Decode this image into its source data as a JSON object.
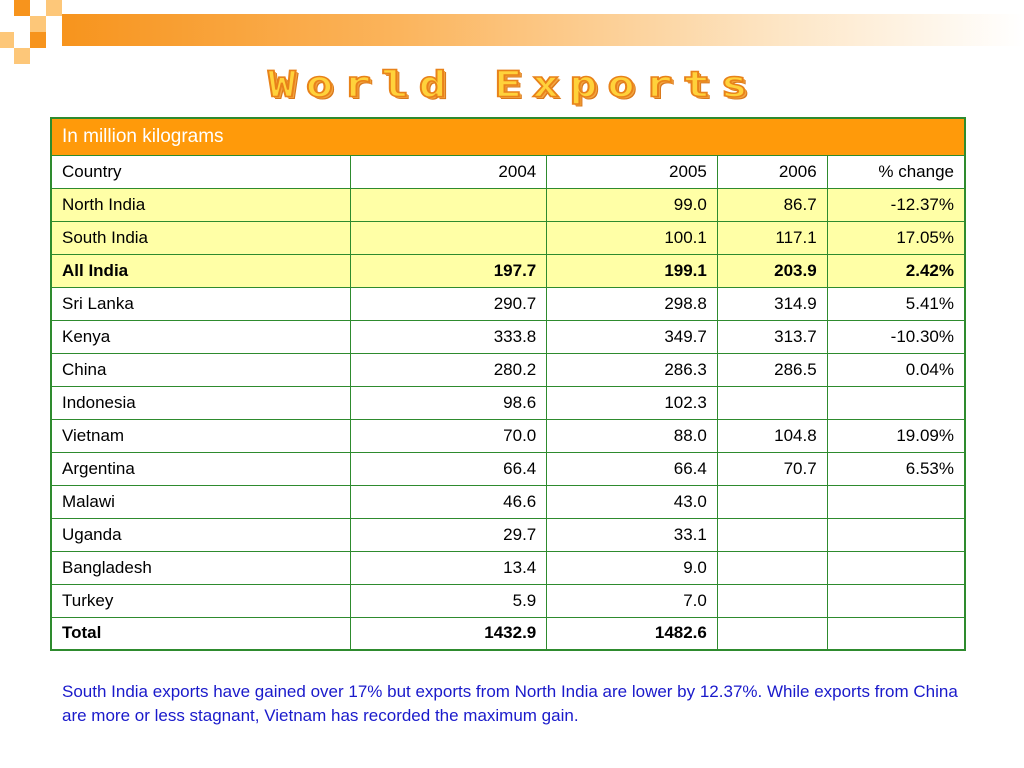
{
  "title": "World Exports",
  "table": {
    "unit": "In million kilograms",
    "headers": [
      "Country",
      "2004",
      "2005",
      "2006",
      "% change"
    ],
    "rows": [
      {
        "country": "North India",
        "y2004": "",
        "y2005": "99.0",
        "y2006": "86.7",
        "change": "-12.37%",
        "highlight": true,
        "bold": false
      },
      {
        "country": "South India",
        "y2004": "",
        "y2005": "100.1",
        "y2006": "117.1",
        "change": "17.05%",
        "highlight": true,
        "bold": false
      },
      {
        "country": "All India",
        "y2004": "197.7",
        "y2005": "199.1",
        "y2006": "203.9",
        "change": "2.42%",
        "highlight": true,
        "bold": true
      },
      {
        "country": "Sri Lanka",
        "y2004": "290.7",
        "y2005": "298.8",
        "y2006": "314.9",
        "change": "5.41%",
        "highlight": false,
        "bold": false
      },
      {
        "country": "Kenya",
        "y2004": "333.8",
        "y2005": "349.7",
        "y2006": "313.7",
        "change": "-10.30%",
        "highlight": false,
        "bold": false
      },
      {
        "country": "China",
        "y2004": "280.2",
        "y2005": "286.3",
        "y2006": "286.5",
        "change": "0.04%",
        "highlight": false,
        "bold": false
      },
      {
        "country": "Indonesia",
        "y2004": "98.6",
        "y2005": "102.3",
        "y2006": "",
        "change": "",
        "highlight": false,
        "bold": false
      },
      {
        "country": "Vietnam",
        "y2004": "70.0",
        "y2005": "88.0",
        "y2006": "104.8",
        "change": "19.09%",
        "highlight": false,
        "bold": false
      },
      {
        "country": "Argentina",
        "y2004": "66.4",
        "y2005": "66.4",
        "y2006": "70.7",
        "change": "6.53%",
        "highlight": false,
        "bold": false
      },
      {
        "country": "Malawi",
        "y2004": "46.6",
        "y2005": "43.0",
        "y2006": "",
        "change": "",
        "highlight": false,
        "bold": false
      },
      {
        "country": "Uganda",
        "y2004": "29.7",
        "y2005": "33.1",
        "y2006": "",
        "change": "",
        "highlight": false,
        "bold": false
      },
      {
        "country": "Bangladesh",
        "y2004": "13.4",
        "y2005": "9.0",
        "y2006": "",
        "change": "",
        "highlight": false,
        "bold": false
      },
      {
        "country": "Turkey",
        "y2004": "5.9",
        "y2005": "7.0",
        "y2006": "",
        "change": "",
        "highlight": false,
        "bold": false
      },
      {
        "country": "Total",
        "y2004": "1432.9",
        "y2005": "1482.6",
        "y2006": "",
        "change": "",
        "highlight": false,
        "bold": true
      }
    ]
  },
  "note": "South India exports have gained over 17% but exports from North India are lower by 12.37%. While exports from China are more or less stagnant, Vietnam has recorded the maximum gain.",
  "colors": {
    "accent_orange": "#ff9a0a",
    "highlight_yellow": "#ffffa6",
    "border_green": "#2e8b2e",
    "note_blue": "#1a1acb"
  }
}
